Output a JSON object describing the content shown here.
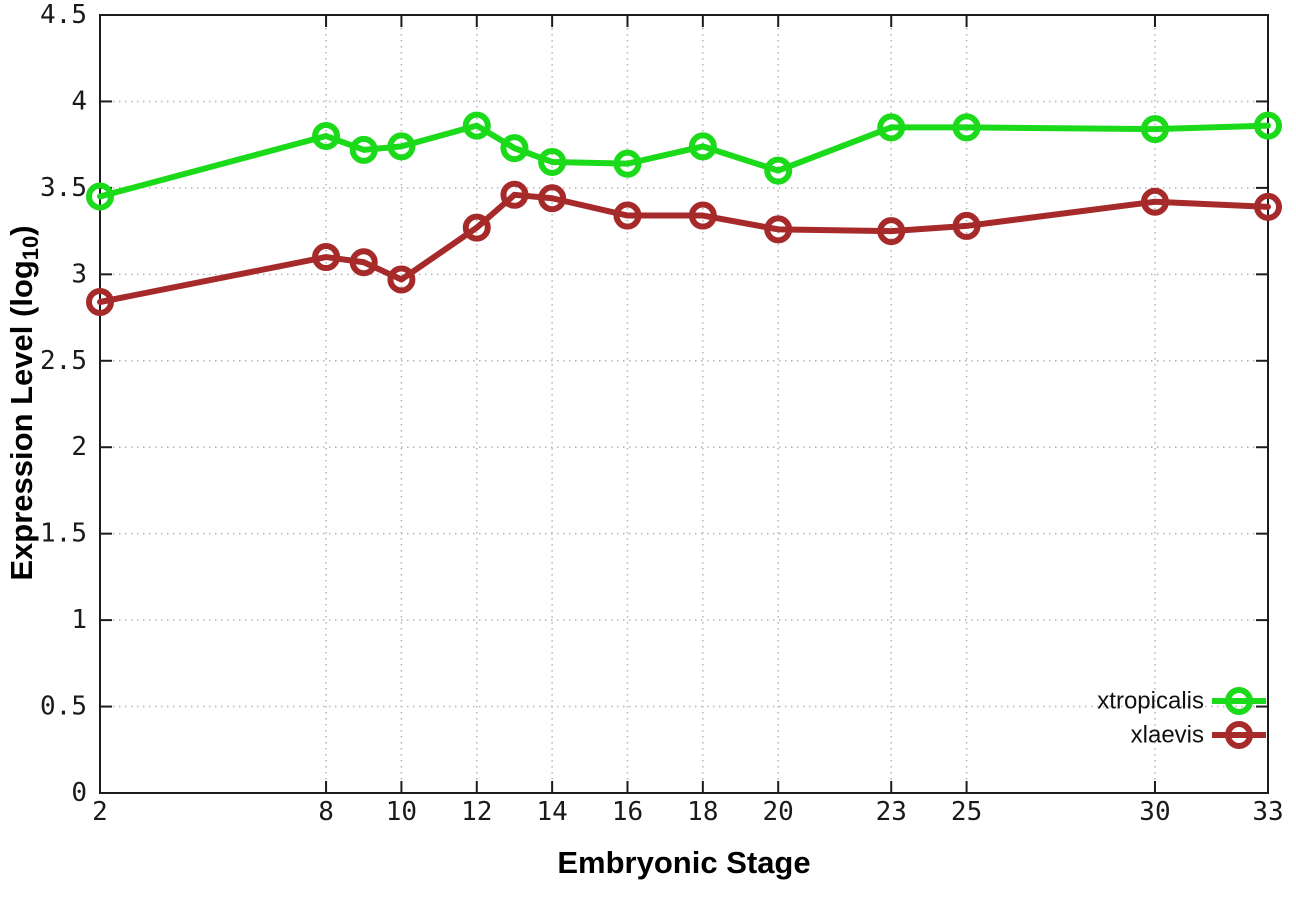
{
  "chart_data": {
    "type": "line",
    "title": "",
    "xlabel": "Embryonic Stage",
    "ylabel": "Expression Level (log10)",
    "ylabel_parts": {
      "prefix": "Expression Level (log",
      "sub": "10",
      "suffix": ")"
    },
    "xlim": [
      2,
      33
    ],
    "ylim": [
      0,
      4.5
    ],
    "grid": true,
    "legend_position": "bottom-right",
    "x_ticks": [
      2,
      8,
      10,
      12,
      14,
      16,
      18,
      20,
      23,
      25,
      30,
      33
    ],
    "x_tick_labels": [
      "2",
      "8",
      "10",
      "12",
      "14",
      "16",
      "18",
      "20",
      "23",
      "25",
      "30",
      "33"
    ],
    "y_ticks": [
      0,
      0.5,
      1,
      1.5,
      2,
      2.5,
      3,
      3.5,
      4,
      4.5
    ],
    "y_tick_labels": [
      "0",
      "0.5",
      "1",
      "1.5",
      "2",
      "2.5",
      "3",
      "3.5",
      "4",
      "4.5"
    ],
    "x": [
      2,
      8,
      9,
      10,
      12,
      13,
      14,
      16,
      18,
      20,
      23,
      25,
      30,
      33
    ],
    "series": [
      {
        "name": "xtropicalis",
        "color": "#1ada1a",
        "values": [
          3.45,
          3.8,
          3.72,
          3.74,
          3.86,
          3.73,
          3.65,
          3.64,
          3.74,
          3.6,
          3.85,
          3.85,
          3.84,
          3.86
        ]
      },
      {
        "name": "xlaevis",
        "color": "#a62a2a",
        "values": [
          2.84,
          3.1,
          3.07,
          2.97,
          3.27,
          3.46,
          3.44,
          3.34,
          3.34,
          3.26,
          3.25,
          3.28,
          3.42,
          3.39
        ]
      }
    ],
    "colors": {
      "grid": "#b5b5b5",
      "axis": "#1c1c1c",
      "tick_text": "#1a1a1a"
    }
  }
}
